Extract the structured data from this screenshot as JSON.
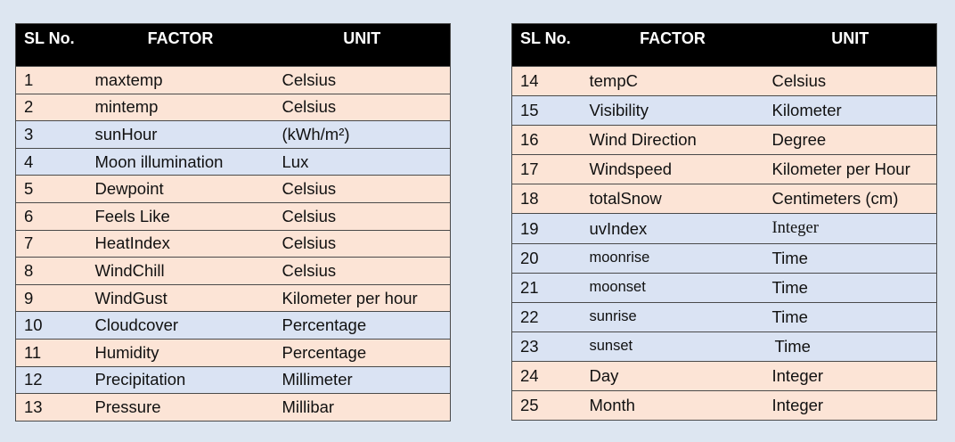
{
  "headers": {
    "sl": "SL No.",
    "factor": "FACTOR",
    "unit": "UNIT"
  },
  "left_table": [
    {
      "sl": "1",
      "factor": "maxtemp",
      "unit": "Celsius",
      "shade": "peach"
    },
    {
      "sl": "2",
      "factor": "mintemp",
      "unit": "Celsius",
      "shade": "peach"
    },
    {
      "sl": "3",
      "factor": "sunHour",
      "unit": "(kWh/m²)",
      "shade": "blue"
    },
    {
      "sl": "4",
      "factor": "Moon illumination",
      "unit": "Lux",
      "shade": "blue"
    },
    {
      "sl": "5",
      "factor": "Dewpoint",
      "unit": "Celsius",
      "shade": "peach"
    },
    {
      "sl": "6",
      "factor": "Feels Like",
      "unit": "Celsius",
      "shade": "peach"
    },
    {
      "sl": "7",
      "factor": "HeatIndex",
      "unit": "Celsius",
      "shade": "peach"
    },
    {
      "sl": "8",
      "factor": "WindChill",
      "unit": "Celsius",
      "shade": "peach"
    },
    {
      "sl": "9",
      "factor": "WindGust",
      "unit": "Kilometer per hour",
      "shade": "peach"
    },
    {
      "sl": "10",
      "factor": "Cloudcover",
      "unit": "Percentage",
      "shade": "blue"
    },
    {
      "sl": "11",
      "factor": "Humidity",
      "unit": "Percentage",
      "shade": "peach"
    },
    {
      "sl": "12",
      "factor": "Precipitation",
      "unit": "Millimeter",
      "shade": "blue"
    },
    {
      "sl": "13",
      "factor": "Pressure",
      "unit": "Millibar",
      "shade": "peach"
    }
  ],
  "right_table": [
    {
      "sl": "14",
      "factor": "tempC",
      "unit": "Celsius",
      "shade": "peach"
    },
    {
      "sl": "15",
      "factor": "Visibility",
      "unit": "Kilometer",
      "shade": "blue"
    },
    {
      "sl": "16",
      "factor": "Wind Direction",
      "unit": "Degree",
      "shade": "peach"
    },
    {
      "sl": "17",
      "factor": "Windspeed",
      "unit": "Kilometer per Hour",
      "shade": "peach"
    },
    {
      "sl": "18",
      "factor": "totalSnow",
      "unit": "Centimeters (cm)",
      "shade": "peach"
    },
    {
      "sl": "19",
      "factor": "uvIndex",
      "unit": "Integer",
      "shade": "blue",
      "unit_serif": true
    },
    {
      "sl": "20",
      "factor": "moonrise",
      "unit": "Time",
      "shade": "blue",
      "factor_small": true
    },
    {
      "sl": "21",
      "factor": "moonset",
      "unit": "Time",
      "shade": "blue",
      "factor_small": true
    },
    {
      "sl": "22",
      "factor": "sunrise",
      "unit": "Time",
      "shade": "blue",
      "factor_small": true
    },
    {
      "sl": "23",
      "factor": "sunset",
      "unit": "Time",
      "shade": "blue",
      "factor_small": true,
      "unit_nudge": true
    },
    {
      "sl": "24",
      "factor": "Day",
      "unit": "Integer",
      "shade": "peach"
    },
    {
      "sl": "25",
      "factor": "Month",
      "unit": "Integer",
      "shade": "peach"
    }
  ],
  "colors": {
    "header_bg": "#000000",
    "peach": "#fce4d6",
    "blue": "#dae3f3",
    "page_bg": "#dde6f1"
  }
}
